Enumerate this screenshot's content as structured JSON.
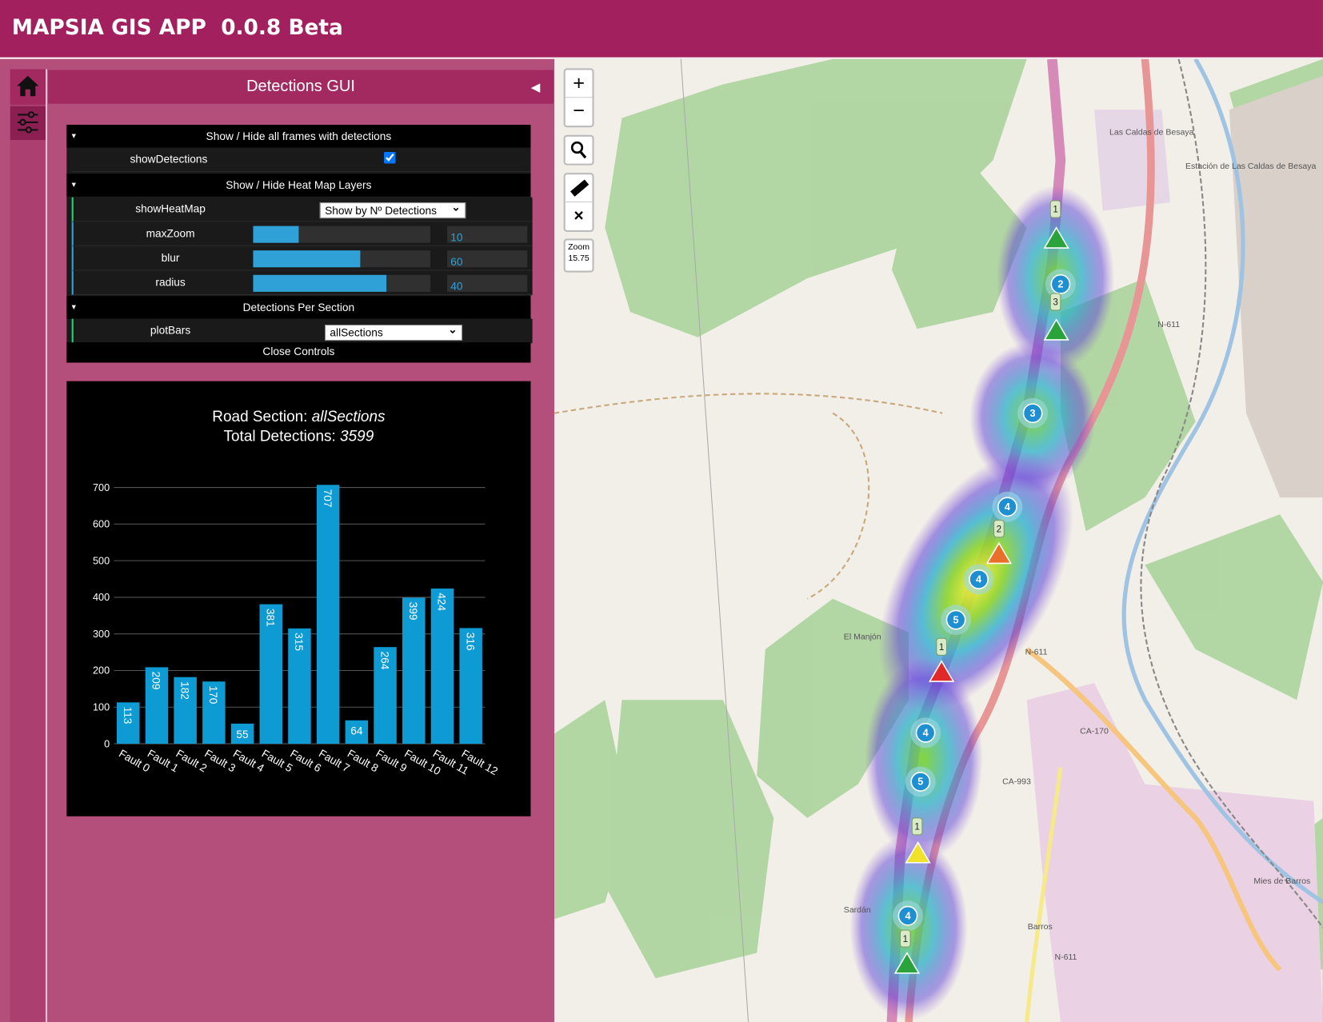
{
  "app": {
    "title": "MAPSIA GIS APP  0.0.8 Beta"
  },
  "panel": {
    "title": "Detections GUI"
  },
  "gui": {
    "folders": [
      {
        "title": "Show / Hide all frames with detections",
        "rows": [
          {
            "label": "showDetections",
            "checked": true
          }
        ]
      },
      {
        "title": "Show / Hide Heat Map Layers",
        "rows": [
          {
            "label": "showHeatMap",
            "option": "Show by Nº Detections"
          },
          {
            "label": "maxZoom",
            "value": 10
          },
          {
            "label": "blur",
            "value": 60
          },
          {
            "label": "radius",
            "value": 40
          }
        ]
      },
      {
        "title": "Detections Per Section",
        "rows": [
          {
            "label": "plotBars",
            "option": "allSections"
          }
        ]
      }
    ],
    "close": "Close Controls"
  },
  "map": {
    "zoom_in": "+",
    "zoom_out": "−",
    "clear": "×",
    "zoom_label": "Zoom",
    "zoom": "15.75",
    "clusters": [
      "2",
      "3",
      "4",
      "4",
      "5",
      "4",
      "5",
      "4"
    ],
    "tags": [
      "1",
      "3",
      "2",
      "1",
      "1",
      "1"
    ],
    "places": [
      "Las Caldas de Besaya",
      "Estación de Las Caldas de Besaya",
      "N-611",
      "N-611",
      "CA-170",
      "CA-993",
      "El Manjón",
      "Mies de Barros",
      "Sardán",
      "Barros",
      "N-611"
    ]
  },
  "chart_data": {
    "type": "bar",
    "title_prefix": "Road Section:",
    "section": "allSections",
    "subtitle_prefix": "Total Detections:",
    "total": 3599,
    "categories": [
      "Fault 0",
      "Fault 1",
      "Fault 2",
      "Fault 3",
      "Fault 4",
      "Fault 5",
      "Fault 6",
      "Fault 7",
      "Fault 8",
      "Fault 9",
      "Fault 10",
      "Fault 11",
      "Fault 12"
    ],
    "values": [
      113,
      209,
      182,
      170,
      55,
      381,
      315,
      707,
      64,
      264,
      399,
      424,
      316
    ],
    "color": "#0e9bd4",
    "ylim": [
      0,
      710
    ],
    "yticks": [
      0,
      100,
      200,
      300,
      400,
      500,
      600,
      700
    ],
    "grid": true
  }
}
